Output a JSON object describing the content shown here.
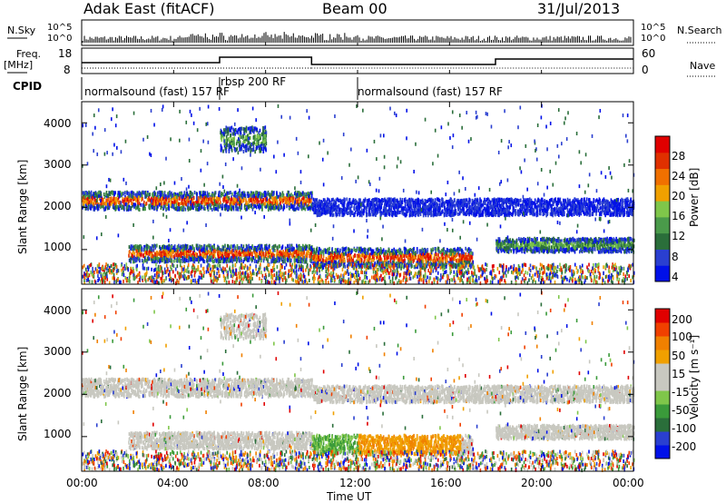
{
  "header": {
    "title_left": "Adak East (fitACF)",
    "title_center": "Beam 00",
    "title_right": "31/Jul/2013"
  },
  "top_panels": {
    "nsky_label": "N.Sky",
    "nsearch_label": "N.Search",
    "freq_label": "Freq.",
    "freq_unit": "[MHz]",
    "nave_label": "Nave",
    "cpid_label": "CPID",
    "count_ticks": [
      "10^5",
      "10^0"
    ],
    "freq_ticks": [
      "18",
      "8"
    ],
    "nave_ticks": [
      "60",
      "0"
    ]
  },
  "cpid_segments": [
    {
      "label": "normalsound (fast) 157 RF"
    },
    {
      "label": "rbsp 200 RF"
    },
    {
      "label": "normalsound (fast) 157 RF"
    }
  ],
  "colors": {
    "power": [
      "#0010e8",
      "#2a3fd0",
      "#2a6e3a",
      "#4a9a4a",
      "#7fc64a",
      "#f0a000",
      "#f07000",
      "#e03000",
      "#e00000"
    ],
    "velocity": [
      "#e00000",
      "#f04000",
      "#f08000",
      "#f0a000",
      "#c8c8c0",
      "#c8c8c0",
      "#7fc64a",
      "#3a9a3a",
      "#2a6e3a",
      "#2a3fd0",
      "#0010e8"
    ]
  },
  "chart_data": [
    {
      "type": "heatmap",
      "name": "power",
      "ylabel": "Slant Range [km]",
      "yticks": [
        "1000",
        "2000",
        "3000",
        "4000"
      ],
      "colorbar_label": "Power [dB]",
      "colorbar_ticks": [
        "4",
        "8",
        "12",
        "16",
        "20",
        "24",
        "28"
      ],
      "ylim": [
        180,
        4500
      ],
      "xlim": [
        "00:00",
        "24:00"
      ],
      "bands": [
        {
          "t0": 0,
          "t1": 10,
          "r_center": 2150,
          "width": 320,
          "level": "strong"
        },
        {
          "t0": 10,
          "t1": 24,
          "r_center": 2000,
          "width": 300,
          "level": "weak"
        },
        {
          "t0": 2,
          "t1": 10,
          "r_center": 900,
          "width": 300,
          "level": "strong"
        },
        {
          "t0": 10,
          "t1": 17,
          "r_center": 800,
          "width": 350,
          "level": "strong"
        },
        {
          "t0": 18,
          "t1": 24,
          "r_center": 1100,
          "width": 250,
          "level": "medium"
        },
        {
          "t0": 6,
          "t1": 8,
          "r_center": 3600,
          "width": 450,
          "level": "medium"
        }
      ]
    },
    {
      "type": "heatmap",
      "name": "velocity",
      "ylabel": "Slant Range [km]",
      "yticks": [
        "1000",
        "2000",
        "3000",
        "4000"
      ],
      "colorbar_label": "Velocity [m s⁻¹]",
      "colorbar_ticks": [
        "200",
        "100",
        "50",
        "15",
        "-15",
        "-50",
        "-100",
        "-200"
      ],
      "ylim": [
        180,
        4500
      ],
      "xlim": [
        "00:00",
        "24:00"
      ],
      "xticks": [
        "00:00",
        "04:00",
        "08:00",
        "12:00",
        "16:00",
        "20:00",
        "00:00"
      ],
      "xlabel": "Time UT"
    }
  ]
}
